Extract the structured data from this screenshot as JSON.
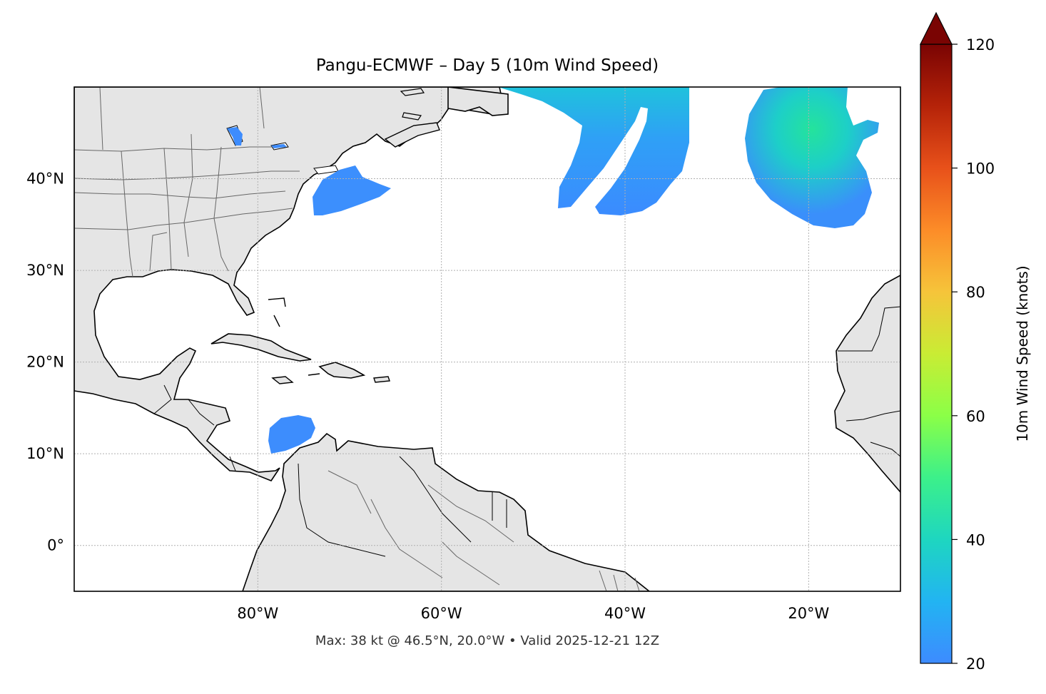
{
  "title": "Pangu-ECMWF – Day 5 (10m Wind Speed)",
  "footer": "Max: 38 kt @ 46.5°N, 20.0°W • Valid 2025-12-21 12Z",
  "map": {
    "lon_range": [
      -100,
      -10
    ],
    "lat_range": [
      -5,
      50
    ],
    "lon_ticks": [
      {
        "value": -80,
        "label": "80°W"
      },
      {
        "value": -60,
        "label": "60°W"
      },
      {
        "value": -40,
        "label": "40°W"
      },
      {
        "value": -20,
        "label": "20°W"
      }
    ],
    "lat_ticks": [
      {
        "value": 0,
        "label": "0°"
      },
      {
        "value": 10,
        "label": "10°N"
      },
      {
        "value": 20,
        "label": "20°N"
      },
      {
        "value": 30,
        "label": "30°N"
      },
      {
        "value": 40,
        "label": "40°N"
      }
    ],
    "gridlines": true,
    "land_color": "#e5e5e5",
    "coast_color": "#000000",
    "border_color": "#666666"
  },
  "colorbar": {
    "label": "10m Wind Speed (knots)",
    "range": [
      20,
      120
    ],
    "extend": "max",
    "colormap": "turbo",
    "ticks": [
      {
        "value": 20,
        "label": "20"
      },
      {
        "value": 40,
        "label": "40"
      },
      {
        "value": 60,
        "label": "60"
      },
      {
        "value": 80,
        "label": "80"
      },
      {
        "value": 100,
        "label": "100"
      },
      {
        "value": 120,
        "label": "120"
      }
    ]
  },
  "wind_regions": [
    {
      "name": "Caribbean",
      "speed": 24
    },
    {
      "name": "Off US East Coast",
      "speed": 24
    },
    {
      "name": "Great Lakes",
      "speed": 23
    },
    {
      "name": "Central Atlantic",
      "speed": 26
    },
    {
      "name": "Eastern Atlantic",
      "speed": 38
    }
  ]
}
